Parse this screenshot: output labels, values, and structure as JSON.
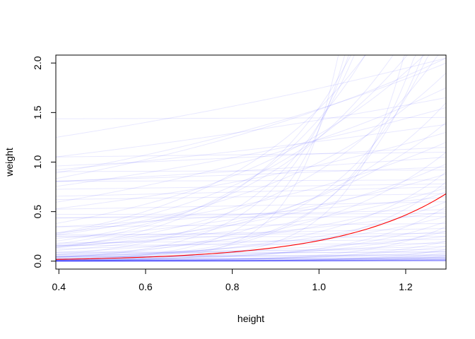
{
  "chart_data": {
    "type": "line",
    "xlabel": "height",
    "ylabel": "weight",
    "xlim": [
      0.393,
      1.293
    ],
    "ylim": [
      -0.08,
      2.08
    ],
    "x_ticks": [
      0.4,
      0.6,
      0.8,
      1.0,
      1.2
    ],
    "x_tick_labels": [
      "0.4",
      "0.6",
      "0.8",
      "1.0",
      "1.2"
    ],
    "y_ticks": [
      0.0,
      0.5,
      1.0,
      1.5,
      2.0
    ],
    "y_tick_labels": [
      "0.0",
      "0.5",
      "1.0",
      "1.5",
      "2.0"
    ],
    "grid": false,
    "curve_form": "y = a * exp(b * (x - 1.293))",
    "highlight": {
      "color": "#ff0000",
      "a": 0.68,
      "b": 4.06
    },
    "samples": {
      "color": "#0000ff",
      "opacity": 0.09,
      "curves": [
        {
          "a": 2.05,
          "b": 1.0
        },
        {
          "a": 2.0,
          "b": 0.9
        },
        {
          "a": 2.05,
          "b": 0.55
        },
        {
          "a": 1.45,
          "b": 0.01
        },
        {
          "a": 1.38,
          "b": 0.45
        },
        {
          "a": 1.15,
          "b": 0.2
        },
        {
          "a": 1.1,
          "b": 0.05
        },
        {
          "a": 1.05,
          "b": 0.3
        },
        {
          "a": 0.95,
          "b": 0.18
        },
        {
          "a": 0.92,
          "b": 0.02
        },
        {
          "a": 0.82,
          "b": 0.02
        },
        {
          "a": 0.78,
          "b": 0.08
        },
        {
          "a": 0.75,
          "b": 0.15
        },
        {
          "a": 0.68,
          "b": 0.1
        },
        {
          "a": 0.6,
          "b": 0.15
        },
        {
          "a": 0.52,
          "b": 0.2
        },
        {
          "a": 0.48,
          "b": 0.02
        },
        {
          "a": 0.45,
          "b": 0.03
        },
        {
          "a": 0.38,
          "b": 0.1
        },
        {
          "a": 0.33,
          "b": 0.3
        },
        {
          "a": 0.28,
          "b": 0.05
        },
        {
          "a": 0.25,
          "b": 0.02
        },
        {
          "a": 0.22,
          "b": 0.2
        },
        {
          "a": 0.18,
          "b": 0.15
        },
        {
          "a": 0.15,
          "b": 0.8
        },
        {
          "a": 0.12,
          "b": 0.3
        },
        {
          "a": 0.1,
          "b": 0.5
        },
        {
          "a": 0.09,
          "b": 0.05
        },
        {
          "a": 0.07,
          "b": 0.6
        },
        {
          "a": 0.06,
          "b": 0.2
        },
        {
          "a": 0.05,
          "b": 0.1
        },
        {
          "a": 0.04,
          "b": 1.0
        },
        {
          "a": 0.035,
          "b": 0.3
        },
        {
          "a": 0.03,
          "b": 0.8
        },
        {
          "a": 0.025,
          "b": 0.5
        },
        {
          "a": 0.02,
          "b": 1.2
        },
        {
          "a": 0.015,
          "b": 0.6
        },
        {
          "a": 0.012,
          "b": 1.5
        },
        {
          "a": 0.01,
          "b": 0.2
        },
        {
          "a": 0.008,
          "b": 2.0
        },
        {
          "a": 0.006,
          "b": 0.5
        },
        {
          "a": 0.005,
          "b": 1.0
        },
        {
          "a": 0.004,
          "b": 2.5
        },
        {
          "a": 0.003,
          "b": 0.3
        },
        {
          "a": 0.002,
          "b": 1.5
        },
        {
          "a": 1.75,
          "b": 1.2
        },
        {
          "a": 1.65,
          "b": 0.5
        },
        {
          "a": 1.55,
          "b": 0.8
        },
        {
          "a": 1.3,
          "b": 1.0
        },
        {
          "a": 1.2,
          "b": 1.6
        },
        {
          "a": 0.98,
          "b": 2.0
        },
        {
          "a": 0.88,
          "b": 1.5
        },
        {
          "a": 0.74,
          "b": 1.8
        },
        {
          "a": 2.3,
          "b": 2.0
        },
        {
          "a": 2.6,
          "b": 2.5
        },
        {
          "a": 3.0,
          "b": 3.0
        },
        {
          "a": 3.5,
          "b": 2.8
        },
        {
          "a": 4.0,
          "b": 3.5
        },
        {
          "a": 5.0,
          "b": 4.0
        },
        {
          "a": 6.0,
          "b": 5.0
        },
        {
          "a": 8.0,
          "b": 6.0
        },
        {
          "a": 12.0,
          "b": 7.5
        },
        {
          "a": 25.0,
          "b": 10.0
        },
        {
          "a": 2.2,
          "b": 3.0
        },
        {
          "a": 2.5,
          "b": 4.5
        },
        {
          "a": 3.2,
          "b": 6.0
        },
        {
          "a": 4.5,
          "b": 8.0
        },
        {
          "a": 2.8,
          "b": 5.5
        },
        {
          "a": 1.9,
          "b": 2.2
        },
        {
          "a": 1.6,
          "b": 3.0
        },
        {
          "a": 1.4,
          "b": 2.6
        },
        {
          "a": 1.1,
          "b": 3.2
        },
        {
          "a": 0.9,
          "b": 3.8
        },
        {
          "a": 0.8,
          "b": 4.5
        },
        {
          "a": 0.6,
          "b": 3.0
        },
        {
          "a": 0.55,
          "b": 5.0
        },
        {
          "a": 0.45,
          "b": 2.5
        },
        {
          "a": 0.4,
          "b": 4.0
        },
        {
          "a": 0.35,
          "b": 6.0
        },
        {
          "a": 0.3,
          "b": 3.5
        },
        {
          "a": 0.2,
          "b": 5.0
        },
        {
          "a": 0.15,
          "b": 4.0
        },
        {
          "a": 0.12,
          "b": 7.0
        },
        {
          "a": 0.1,
          "b": 3.0
        },
        {
          "a": 0.08,
          "b": 6.0
        },
        {
          "a": 0.06,
          "b": 4.5
        },
        {
          "a": 0.05,
          "b": 8.0
        },
        {
          "a": 0.04,
          "b": 3.5
        },
        {
          "a": 0.03,
          "b": 5.5
        },
        {
          "a": 0.02,
          "b": 9.0
        },
        {
          "a": 0.015,
          "b": 4.0
        },
        {
          "a": 0.01,
          "b": 6.5
        },
        {
          "a": 0.3,
          "b": 1.0
        },
        {
          "a": 0.25,
          "b": 1.8
        },
        {
          "a": 0.2,
          "b": 2.2
        },
        {
          "a": 0.5,
          "b": 1.3
        },
        {
          "a": 0.7,
          "b": 2.3
        },
        {
          "a": 0.65,
          "b": 0.7
        }
      ]
    }
  }
}
